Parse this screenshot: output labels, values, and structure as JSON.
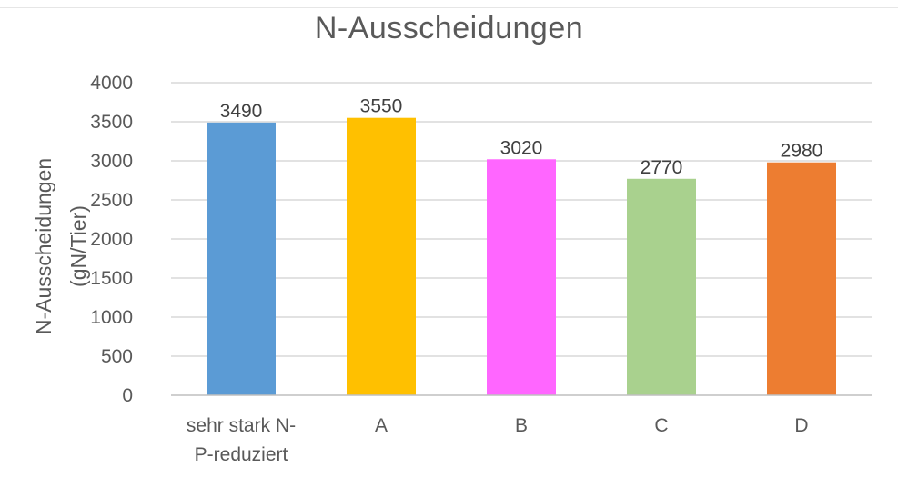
{
  "chart_data": {
    "type": "bar",
    "title": "N-Ausscheidungen",
    "xlabel": "",
    "ylabel_lines": [
      "N-Ausscheidungen",
      "(gN/Tier)"
    ],
    "categories": [
      [
        "sehr stark N-",
        "P-reduziert"
      ],
      [
        "A"
      ],
      [
        "B"
      ],
      [
        "C"
      ],
      [
        "D"
      ]
    ],
    "values": [
      3490,
      3550,
      3020,
      2770,
      2980
    ],
    "colors": [
      "#5b9bd5",
      "#ffc000",
      "#ff66ff",
      "#a9d18e",
      "#ed7d31"
    ],
    "ylim": [
      0,
      4000
    ],
    "yticks": [
      0,
      500,
      1000,
      1500,
      2000,
      2500,
      3000,
      3500,
      4000
    ],
    "grid": true,
    "data_labels": true,
    "legend": "none"
  }
}
